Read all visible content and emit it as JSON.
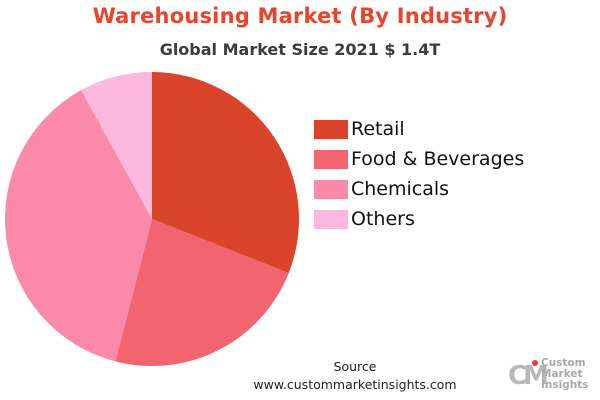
{
  "header": {
    "title": "Warehousing Market (By Industry)",
    "subtitle": "Global Market Size 2021 $ 1.4T"
  },
  "chart_data": {
    "type": "pie",
    "categories": [
      "Retail",
      "Food & Beverages",
      "Chemicals",
      "Others"
    ],
    "values": [
      31,
      23,
      38,
      8
    ],
    "colors": [
      "#d9442a",
      "#f26570",
      "#fb8aaa",
      "#fdb8de"
    ],
    "title": "Warehousing Market (By Industry)",
    "subtitle": "Global Market Size 2021 $ 1.4T",
    "legend_position": "right",
    "start": "top",
    "direction": "clockwise"
  },
  "source": {
    "label": "Source",
    "url": "www.custommarketinsights.com"
  },
  "logo": {
    "mark": "CM",
    "lines": [
      "Custom",
      "Market",
      "Insights"
    ]
  }
}
